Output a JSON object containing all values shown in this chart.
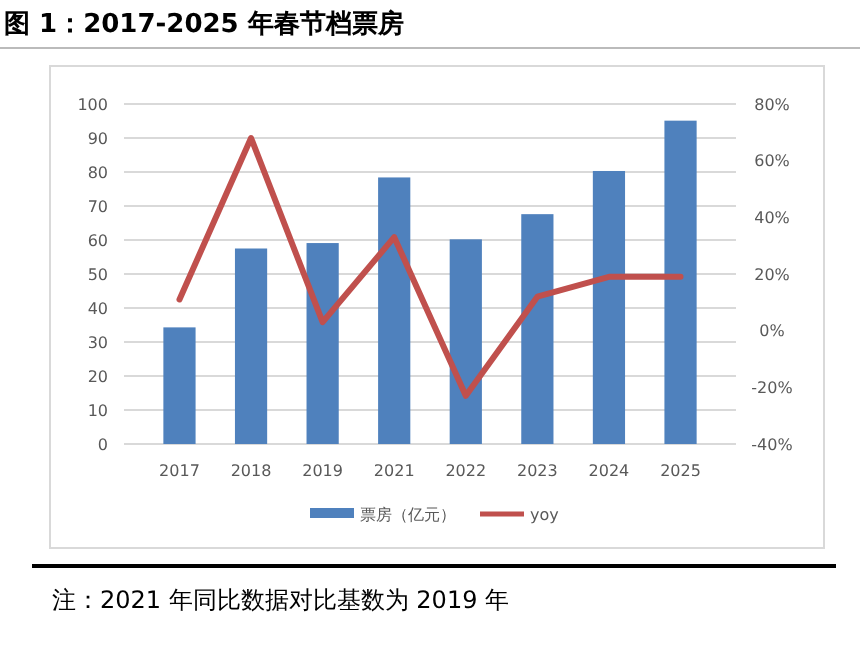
{
  "chart_data": {
    "type": "bar",
    "title": "图 1：2017-2025 年春节档票房",
    "categories": [
      "2017",
      "2018",
      "2019",
      "2021",
      "2022",
      "2023",
      "2024",
      "2025"
    ],
    "series": [
      {
        "name": "票房（亿元）",
        "color": "#4f81bd",
        "values": [
          34.3,
          57.5,
          59.1,
          78.4,
          60.2,
          67.6,
          80.3,
          95.1
        ]
      },
      {
        "name": "yoy",
        "type": "line",
        "axis": "y2",
        "color": "#c0504d",
        "values": [
          11,
          68,
          3,
          33,
          -23,
          12,
          19,
          19
        ]
      }
    ],
    "ylim": [
      0,
      100
    ],
    "yticks": [
      0,
      10,
      20,
      30,
      40,
      50,
      60,
      70,
      80,
      90,
      100
    ],
    "y2lim": [
      -40,
      80
    ],
    "y2ticks": [
      {
        "value": -40,
        "label": "-40%"
      },
      {
        "value": -20,
        "label": "-20%"
      },
      {
        "value": 0,
        "label": "0%"
      },
      {
        "value": 20,
        "label": "20%"
      },
      {
        "value": 40,
        "label": "40%"
      },
      {
        "value": 60,
        "label": "60%"
      },
      {
        "value": 80,
        "label": "80%"
      }
    ],
    "grid": "y",
    "legend": "bottom",
    "line_style": "solid",
    "marker": "none",
    "annotations": [
      "注：2021 年同比数据对比基数为 2019 年"
    ]
  }
}
